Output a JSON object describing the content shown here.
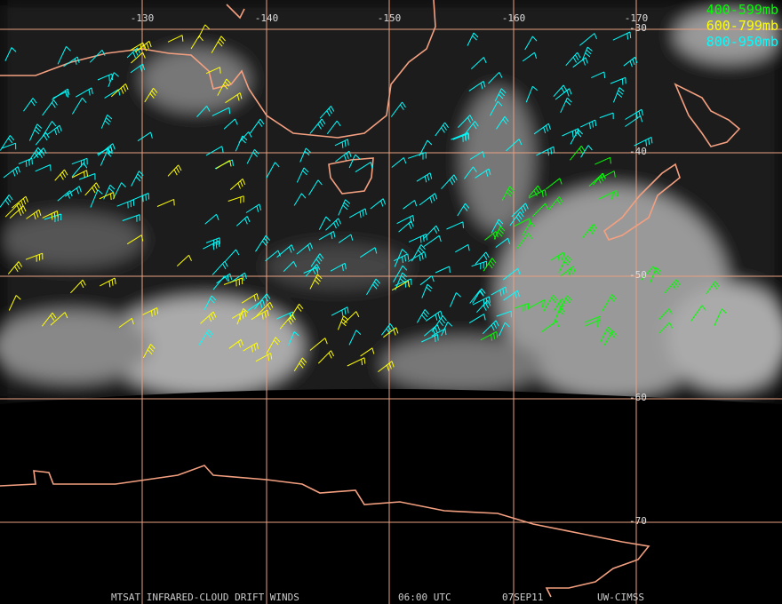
{
  "map": {
    "longitude_labels": [
      "-130",
      "-140",
      "-150",
      "-160",
      "-170"
    ],
    "latitude_labels": [
      "-30",
      "-40",
      "-50",
      "-60",
      "-70"
    ],
    "legend": [
      "400-599mb",
      "600-799mb",
      "800-950mb"
    ],
    "footer": [
      "MTSAT INFRARED-CLOUD DRIFT WINDS",
      "06:00 UTC",
      "07SEP11",
      "UW-CIMSS"
    ]
  }
}
